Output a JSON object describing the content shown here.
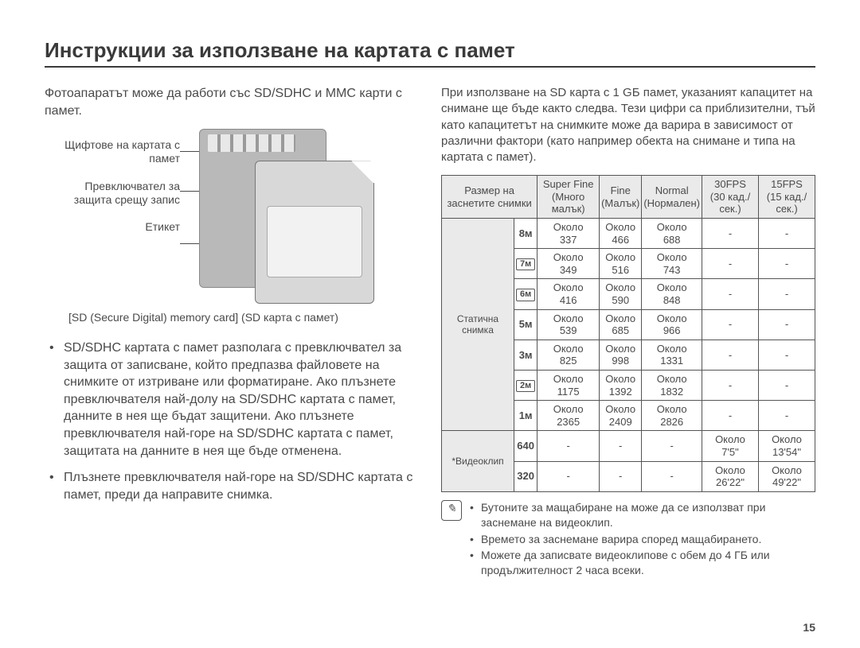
{
  "title": "Инструкции за използване на картата с памет",
  "left": {
    "intro": "Фотоапаратът може да работи със SD/SDHC и MMC карти с памет.",
    "labels": {
      "pins": "Щифтове на картата с памет",
      "switch": "Превключвател за защита срещу запис",
      "label": "Етикет"
    },
    "caption": "[SD (Secure Digital) memory card] (SD карта с памет)",
    "bullets": [
      "SD/SDHC картата с памет разполага с превключвател за защита от записване, който предпазва файловете на снимките от изтриване или форматиране. Ако плъзнете превключвателя най-долу на SD/SDHC картата с памет, данните в нея ще бъдат защитени. Ако плъзнете превключвателя най-горе на SD/SDHC картата с памет, защитата на данните в нея ще бъде отменена.",
      "Плъзнете превключвателя най-горе на SD/SDHC картата с памет, преди да направите снимка."
    ]
  },
  "right": {
    "intro": "При използване на SD карта с 1 GБ памет, указаният капацитет на снимане ще бъде както следва. Тези цифри са приблизителни, тъй като капацитетът на снимките може да варира в зависимост от различни фактори (като например обекта на снимане и типа на картата с памет).",
    "approx": "Около",
    "table": {
      "head": {
        "size1": "Размер на",
        "size2": "заснетите снимки",
        "sf1": "Super Fine",
        "sf2": "(Много малък)",
        "f1": "Fine",
        "f2": "(Малък)",
        "n1": "Normal",
        "n2": "(Нормален)",
        "fps30a": "30FPS",
        "fps30b": "(30 кад./сек.)",
        "fps15a": "15FPS",
        "fps15b": "(15 кад./сек.)"
      },
      "still_label": "Статична снимка",
      "video_label": "*Видеоклип",
      "still": [
        {
          "size": "8ᴍ",
          "badge": false,
          "sf": "337",
          "f": "466",
          "n": "688"
        },
        {
          "size": "7ᴍ",
          "badge": true,
          "sf": "349",
          "f": "516",
          "n": "743"
        },
        {
          "size": "6ᴍ",
          "badge": true,
          "sf": "416",
          "f": "590",
          "n": "848"
        },
        {
          "size": "5ᴍ",
          "badge": false,
          "sf": "539",
          "f": "685",
          "n": "966"
        },
        {
          "size": "3ᴍ",
          "badge": false,
          "sf": "825",
          "f": "998",
          "n": "1331"
        },
        {
          "size": "2ᴍ",
          "badge": true,
          "sf": "1175",
          "f": "1392",
          "n": "1832"
        },
        {
          "size": "1ᴍ",
          "badge": false,
          "sf": "2365",
          "f": "2409",
          "n": "2826"
        }
      ],
      "video": [
        {
          "size": "640",
          "fps30": "7'5\"",
          "fps15": "13'54\""
        },
        {
          "size": "320",
          "fps30": "26'22\"",
          "fps15": "49'22\""
        }
      ]
    },
    "notes": [
      "Бутоните за мащабиране на може да се използват при заснемане на видеоклип.",
      "Времето за заснемане варира според мащабирането.",
      "Можете да записвате видеоклипове с обем до 4 ГБ или продължителност 2 часа всеки."
    ]
  },
  "page": "15"
}
